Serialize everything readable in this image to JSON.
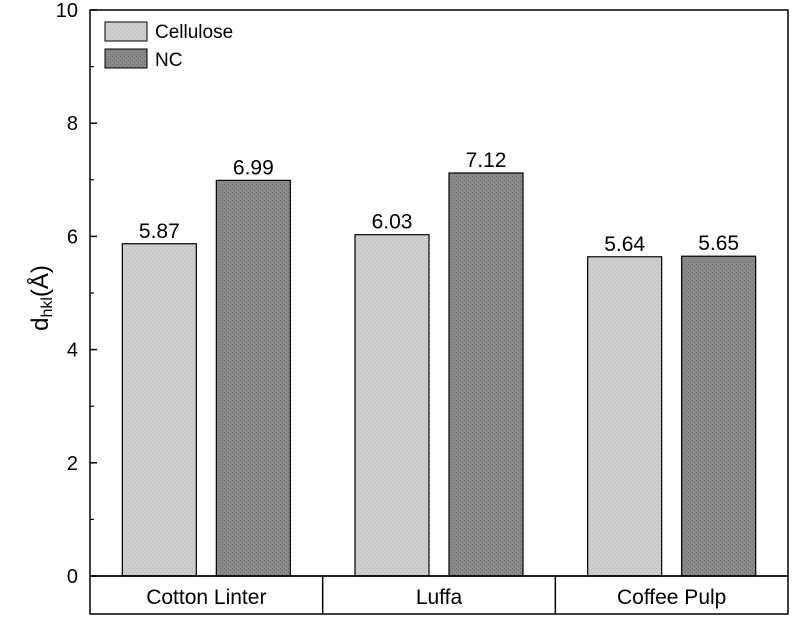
{
  "chart_data": {
    "type": "bar",
    "categories": [
      "Cotton Linter",
      "Luffa",
      "Coffee Pulp"
    ],
    "series": [
      {
        "name": "Cellulose",
        "values": [
          5.87,
          6.03,
          5.64
        ],
        "color": "#c8c8c8"
      },
      {
        "name": "NC",
        "values": [
          6.99,
          7.12,
          5.65
        ],
        "color": "#828282"
      }
    ],
    "data_labels": [
      [
        "5.87",
        "6.99"
      ],
      [
        "6.03",
        "7.12"
      ],
      [
        "5.64",
        "5.65"
      ]
    ],
    "ylim": [
      0,
      10
    ],
    "yticks": [
      0,
      2,
      4,
      6,
      8,
      10
    ],
    "ylabel": {
      "main": "d",
      "sub": "hkl",
      "unit": "(Å)"
    },
    "xlabel": "",
    "legend": "top-left",
    "grid": false
  }
}
